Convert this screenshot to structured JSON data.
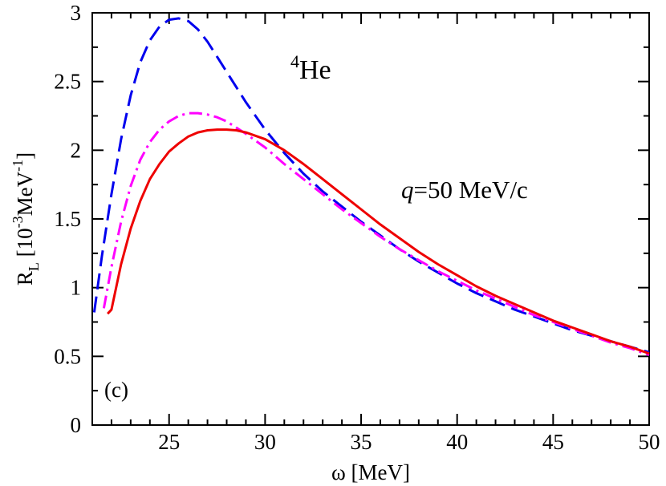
{
  "chart_data": {
    "type": "line",
    "title": "",
    "xlabel": "ω [MeV]",
    "ylabel": {
      "symbol": "R",
      "subscript": "L",
      "unit_prefix": " [10",
      "unit_exp": "-3",
      "unit_mid": "MeV",
      "unit_exp2": "-1",
      "unit_suffix": "]"
    },
    "xlim": [
      21,
      50
    ],
    "ylim": [
      0,
      3
    ],
    "xticks": [
      25,
      30,
      35,
      40,
      45,
      50
    ],
    "yticks": [
      0,
      0.5,
      1,
      1.5,
      2,
      2.5,
      3
    ],
    "xtick_labels": [
      "25",
      "30",
      "35",
      "40",
      "45",
      "50"
    ],
    "ytick_labels": [
      "0",
      "0.5",
      "1",
      "1.5",
      "2",
      "2.5",
      "3"
    ],
    "grid": false,
    "series": [
      {
        "name": "dashed",
        "color": "#0000ee",
        "style": "dashed",
        "x": [
          21.1,
          21.5,
          22,
          22.5,
          23,
          23.5,
          24,
          24.5,
          25,
          25.5,
          26,
          26.5,
          27,
          27.5,
          28,
          29,
          30,
          31,
          32,
          33,
          34,
          35,
          36,
          37,
          38,
          39,
          40,
          41,
          42,
          43,
          44,
          45,
          46,
          47,
          48,
          49,
          50
        ],
        "y": [
          0.82,
          1.23,
          1.68,
          2.08,
          2.4,
          2.64,
          2.8,
          2.9,
          2.95,
          2.96,
          2.94,
          2.88,
          2.79,
          2.68,
          2.57,
          2.35,
          2.15,
          1.98,
          1.83,
          1.7,
          1.59,
          1.48,
          1.38,
          1.28,
          1.19,
          1.11,
          1.03,
          0.96,
          0.9,
          0.84,
          0.79,
          0.74,
          0.69,
          0.65,
          0.61,
          0.57,
          0.53
        ]
      },
      {
        "name": "dash-dot",
        "color": "#ff00ff",
        "style": "dashdot",
        "x": [
          21.6,
          22,
          22.5,
          23,
          23.5,
          24,
          24.5,
          25,
          25.5,
          26,
          26.5,
          27,
          27.5,
          28,
          29,
          30,
          31,
          32,
          33,
          34,
          35,
          36,
          37,
          38,
          39,
          40,
          41,
          42,
          43,
          44,
          45,
          46,
          47,
          48,
          49,
          50
        ],
        "y": [
          0.85,
          1.15,
          1.48,
          1.74,
          1.93,
          2.06,
          2.15,
          2.21,
          2.25,
          2.27,
          2.27,
          2.26,
          2.24,
          2.21,
          2.12,
          2.02,
          1.9,
          1.79,
          1.68,
          1.57,
          1.47,
          1.37,
          1.28,
          1.2,
          1.12,
          1.05,
          0.98,
          0.92,
          0.86,
          0.8,
          0.75,
          0.7,
          0.65,
          0.6,
          0.56,
          0.51
        ]
      },
      {
        "name": "solid",
        "color": "#ee0000",
        "style": "solid",
        "x": [
          21.8,
          22,
          22.5,
          23,
          23.5,
          24,
          24.5,
          25,
          25.5,
          26,
          26.5,
          27,
          27.5,
          28,
          28.5,
          29,
          30,
          31,
          32,
          33,
          34,
          35,
          36,
          37,
          38,
          39,
          40,
          41,
          42,
          43,
          44,
          45,
          46,
          47,
          48,
          49,
          50
        ],
        "y": [
          0.81,
          0.84,
          1.17,
          1.43,
          1.63,
          1.79,
          1.9,
          1.99,
          2.05,
          2.1,
          2.13,
          2.145,
          2.15,
          2.15,
          2.145,
          2.13,
          2.08,
          2.0,
          1.9,
          1.79,
          1.68,
          1.57,
          1.46,
          1.36,
          1.26,
          1.17,
          1.09,
          1.01,
          0.94,
          0.88,
          0.82,
          0.76,
          0.71,
          0.66,
          0.61,
          0.57,
          0.52
        ]
      }
    ],
    "annotations": {
      "nucleus_mass": "4",
      "nucleus_symbol": "He",
      "q_symbol": "q",
      "q_value": "=50 MeV/c",
      "panel": "(c)"
    }
  }
}
